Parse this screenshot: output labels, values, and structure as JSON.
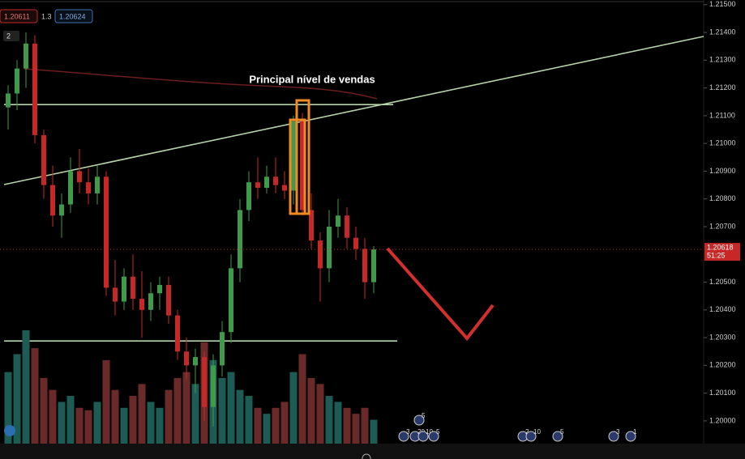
{
  "chart_data": {
    "type": "candlestick",
    "title": "Principal nível de vendas",
    "header": {
      "bid": "1.20611",
      "spread": "1.3",
      "ask": "1.20624",
      "layout": "2"
    },
    "ylim": [
      1.19918,
      1.21517
    ],
    "yticks": [
      {
        "value": 1.215,
        "label": "1.21500"
      },
      {
        "value": 1.214,
        "label": "1.21400"
      },
      {
        "value": 1.213,
        "label": "1.21300"
      },
      {
        "value": 1.212,
        "label": "1.21200"
      },
      {
        "value": 1.211,
        "label": "1.21100"
      },
      {
        "value": 1.21,
        "label": "1.21000"
      },
      {
        "value": 1.209,
        "label": "1.20900"
      },
      {
        "value": 1.208,
        "label": "1.20800"
      },
      {
        "value": 1.207,
        "label": "1.20700"
      },
      {
        "value": 1.205,
        "label": "1.20500"
      },
      {
        "value": 1.204,
        "label": "1.20400"
      },
      {
        "value": 1.203,
        "label": "1.20300"
      },
      {
        "value": 1.202,
        "label": "1.20200"
      },
      {
        "value": 1.201,
        "label": "1.20100"
      },
      {
        "value": 1.2,
        "label": "1.20000"
      }
    ],
    "current_price": {
      "value": 1.20618,
      "label": "1.20618"
    },
    "countdown": "51:25",
    "levels": [
      1.2114,
      1.20288
    ],
    "colors": {
      "up": "#3f9a4c",
      "down": "#c62828",
      "volume_up": "#1d5c55",
      "volume_down": "#6b2a2a"
    },
    "candles": [
      {
        "open": 1.2113,
        "high": 1.2121,
        "low": 1.2105,
        "close": 1.2118
      },
      {
        "open": 1.2118,
        "high": 1.213,
        "low": 1.2112,
        "close": 1.2127
      },
      {
        "open": 1.2127,
        "high": 1.214,
        "low": 1.212,
        "close": 1.2136
      },
      {
        "open": 1.2136,
        "high": 1.2139,
        "low": 1.21,
        "close": 1.2103
      },
      {
        "open": 1.2103,
        "high": 1.2105,
        "low": 1.208,
        "close": 1.2085
      },
      {
        "open": 1.2085,
        "high": 1.2092,
        "low": 1.207,
        "close": 1.2074
      },
      {
        "open": 1.2074,
        "high": 1.2082,
        "low": 1.2066,
        "close": 1.2078
      },
      {
        "open": 1.2078,
        "high": 1.2095,
        "low": 1.2075,
        "close": 1.209
      },
      {
        "open": 1.209,
        "high": 1.2098,
        "low": 1.2082,
        "close": 1.2086
      },
      {
        "open": 1.2086,
        "high": 1.2091,
        "low": 1.2078,
        "close": 1.2082
      },
      {
        "open": 1.2082,
        "high": 1.2092,
        "low": 1.2078,
        "close": 1.2088
      },
      {
        "open": 1.2088,
        "high": 1.209,
        "low": 1.2045,
        "close": 1.2048
      },
      {
        "open": 1.2048,
        "high": 1.2058,
        "low": 1.2038,
        "close": 1.2043
      },
      {
        "open": 1.2043,
        "high": 1.2055,
        "low": 1.204,
        "close": 1.2052
      },
      {
        "open": 1.2052,
        "high": 1.206,
        "low": 1.204,
        "close": 1.2044
      },
      {
        "open": 1.2044,
        "high": 1.2054,
        "low": 1.203,
        "close": 1.204
      },
      {
        "open": 1.204,
        "high": 1.205,
        "low": 1.2036,
        "close": 1.2046
      },
      {
        "open": 1.2046,
        "high": 1.2052,
        "low": 1.204,
        "close": 1.2049
      },
      {
        "open": 1.2049,
        "high": 1.2052,
        "low": 1.2035,
        "close": 1.2038
      },
      {
        "open": 1.2038,
        "high": 1.204,
        "low": 1.2022,
        "close": 1.2025
      },
      {
        "open": 1.2025,
        "high": 1.203,
        "low": 1.2015,
        "close": 1.202
      },
      {
        "open": 1.202,
        "high": 1.2026,
        "low": 1.201,
        "close": 1.2023
      },
      {
        "open": 1.2023,
        "high": 1.2025,
        "low": 1.2,
        "close": 1.2005
      },
      {
        "open": 1.2005,
        "high": 1.2024,
        "low": 1.1998,
        "close": 1.202
      },
      {
        "open": 1.202,
        "high": 1.2036,
        "low": 1.2016,
        "close": 1.2032
      },
      {
        "open": 1.2032,
        "high": 1.206,
        "low": 1.2028,
        "close": 1.2055
      },
      {
        "open": 1.2055,
        "high": 1.208,
        "low": 1.205,
        "close": 1.2076
      },
      {
        "open": 1.2076,
        "high": 1.209,
        "low": 1.2072,
        "close": 1.2086
      },
      {
        "open": 1.2086,
        "high": 1.2095,
        "low": 1.208,
        "close": 1.2084
      },
      {
        "open": 1.2084,
        "high": 1.2092,
        "low": 1.2082,
        "close": 1.2088
      },
      {
        "open": 1.2088,
        "high": 1.2095,
        "low": 1.2082,
        "close": 1.2085
      },
      {
        "open": 1.2085,
        "high": 1.209,
        "low": 1.208,
        "close": 1.2083
      },
      {
        "open": 1.2083,
        "high": 1.211,
        "low": 1.2078,
        "close": 1.2108
      },
      {
        "open": 1.2108,
        "high": 1.2111,
        "low": 1.2074,
        "close": 1.2076
      },
      {
        "open": 1.2076,
        "high": 1.2082,
        "low": 1.2062,
        "close": 1.2065
      },
      {
        "open": 1.2065,
        "high": 1.2068,
        "low": 1.2043,
        "close": 1.2055
      },
      {
        "open": 1.2055,
        "high": 1.2076,
        "low": 1.205,
        "close": 1.207
      },
      {
        "open": 1.207,
        "high": 1.208,
        "low": 1.2066,
        "close": 1.2074
      },
      {
        "open": 1.2074,
        "high": 1.2077,
        "low": 1.2062,
        "close": 1.2066
      },
      {
        "open": 1.2066,
        "high": 1.207,
        "low": 1.2058,
        "close": 1.2062
      },
      {
        "open": 1.2062,
        "high": 1.2066,
        "low": 1.2044,
        "close": 1.205
      },
      {
        "open": 1.205,
        "high": 1.2063,
        "low": 1.2046,
        "close": 1.20618
      }
    ],
    "volume": [
      60,
      75,
      95,
      80,
      55,
      45,
      35,
      40,
      30,
      28,
      35,
      70,
      45,
      30,
      40,
      50,
      35,
      30,
      45,
      55,
      60,
      50,
      85,
      70,
      55,
      60,
      45,
      40,
      30,
      25,
      30,
      35,
      60,
      75,
      55,
      50,
      40,
      35,
      30,
      25,
      30,
      20
    ],
    "events": [
      "5",
      "3",
      "20",
      "10",
      "5",
      "2",
      "10",
      "5",
      "3",
      "1"
    ]
  }
}
